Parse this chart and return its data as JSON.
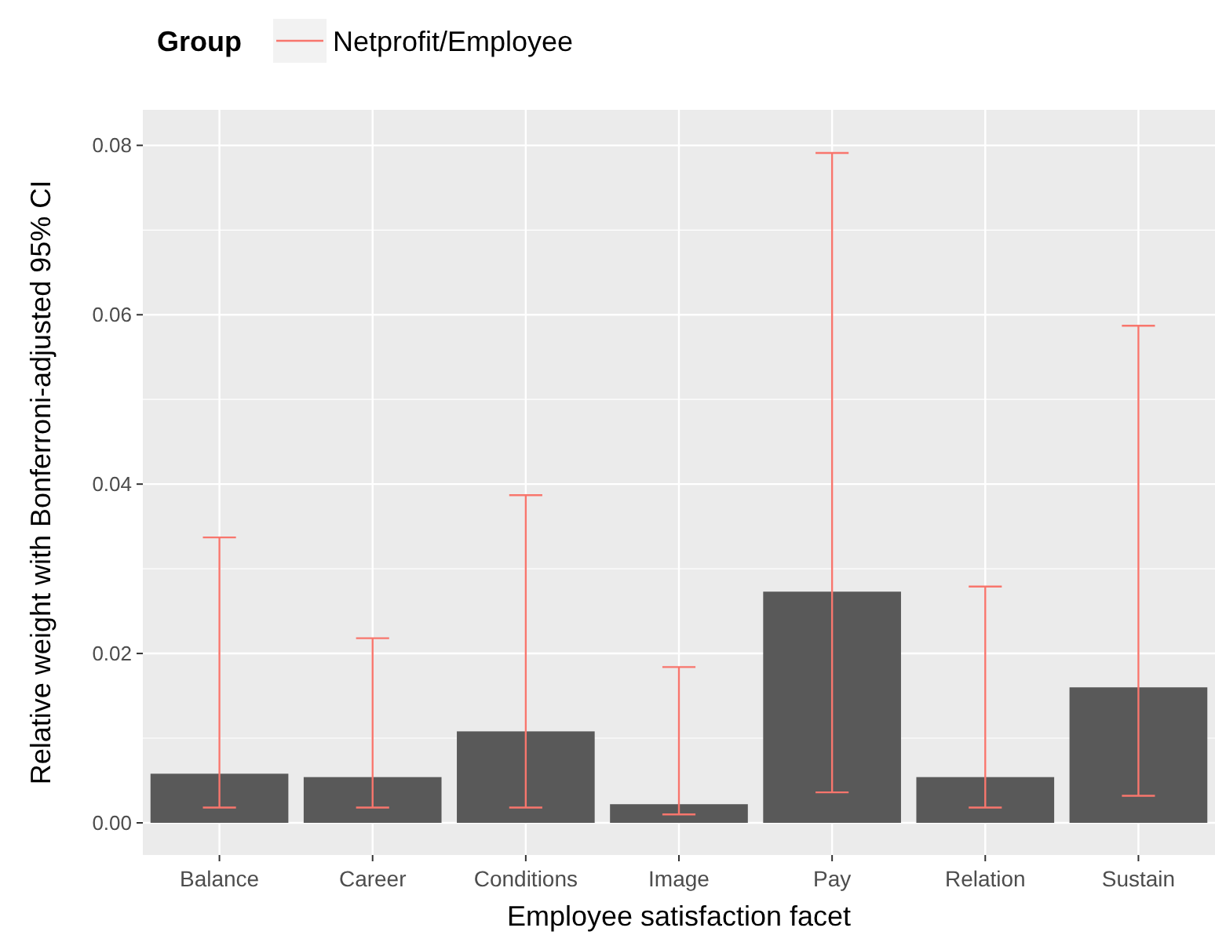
{
  "chart_data": {
    "type": "bar",
    "xlabel": "Employee satisfaction facet",
    "ylabel": "Relative weight with Bonferroni-adjusted 95% CI",
    "legend_title": "Group",
    "legend": "top left",
    "grid": true,
    "categories": [
      "Balance",
      "Career",
      "Conditions",
      "Image",
      "Pay",
      "Relation",
      "Sustain"
    ],
    "ylim": [
      -0.0038,
      0.0842
    ],
    "yticks": [
      {
        "value": 0,
        "label": "0.00"
      },
      {
        "value": 0.02,
        "label": "0.02"
      },
      {
        "value": 0.04,
        "label": "0.04"
      },
      {
        "value": 0.06,
        "label": "0.06"
      },
      {
        "value": 0.08,
        "label": "0.08"
      }
    ],
    "series": [
      {
        "name": "Netprofit/Employee",
        "color": "#f8766d",
        "colors": [
          "#595959",
          "#595959",
          "#595959",
          "#595959",
          "#595959",
          "#595959",
          "#595959"
        ],
        "values": [
          0.0058,
          0.0054,
          0.0108,
          0.0022,
          0.0273,
          0.0054,
          0.016
        ],
        "errors": [
          [
            0.0018,
            0.0337
          ],
          [
            0.0018,
            0.0218
          ],
          [
            0.0018,
            0.0387
          ],
          [
            0.001,
            0.0184
          ],
          [
            0.0036,
            0.0791
          ],
          [
            0.0018,
            0.0279
          ],
          [
            0.0032,
            0.0587
          ]
        ]
      }
    ]
  }
}
